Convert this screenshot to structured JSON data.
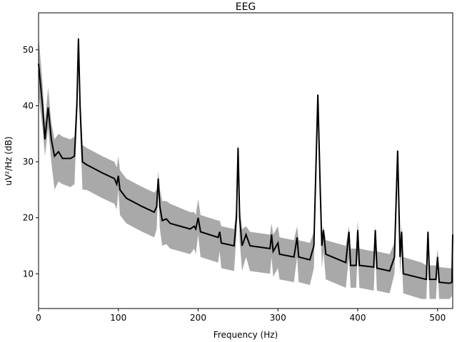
{
  "chart_data": {
    "type": "line",
    "title": "EEG",
    "x_label": "Frequency (Hz)",
    "y_label": "uV²/Hz (dB)",
    "x": [
      0,
      5,
      8,
      12,
      16,
      20,
      25,
      30,
      40,
      45,
      48,
      50,
      52,
      55,
      60,
      80,
      95,
      98,
      100,
      102,
      110,
      130,
      145,
      148,
      150,
      152,
      155,
      160,
      165,
      190,
      195,
      197,
      200,
      203,
      225,
      227,
      229,
      245,
      248,
      250,
      252,
      255,
      260,
      265,
      290,
      292,
      294,
      300,
      302,
      320,
      324,
      326,
      340,
      345,
      350,
      353,
      355,
      357,
      360,
      385,
      389,
      391,
      398,
      400,
      402,
      420,
      422,
      424,
      440,
      446,
      450,
      453,
      455,
      457,
      480,
      486,
      488,
      490,
      498,
      500,
      502,
      515,
      518,
      519
    ],
    "series": [
      {
        "color": "#000000",
        "band_color": "#a9a9a9",
        "values": [
          47.5,
          40,
          34,
          39.7,
          34,
          31,
          31.8,
          30.6,
          30.6,
          31,
          40,
          52,
          40,
          30,
          29.5,
          28,
          27,
          26,
          27.5,
          25,
          23.5,
          22,
          21,
          22,
          27,
          22,
          19.5,
          19.8,
          19,
          18,
          18.5,
          18,
          20,
          17.5,
          16.5,
          17.5,
          15.5,
          15,
          20,
          32.5,
          20,
          15,
          17,
          15,
          14.5,
          17,
          14,
          15.5,
          13.5,
          13,
          16.5,
          13,
          12.5,
          15,
          42,
          25,
          15,
          17.8,
          13.5,
          12,
          17.5,
          11.5,
          11.5,
          17.8,
          11.5,
          11.2,
          17.8,
          11,
          10.5,
          13,
          32,
          13,
          17.5,
          10,
          9.2,
          9,
          17.5,
          9,
          9,
          13,
          8.5,
          8.3,
          8.5,
          17
        ],
        "lower": [
          42,
          36,
          31,
          36,
          30,
          25,
          26.5,
          26,
          25.5,
          26,
          37,
          50,
          36,
          25,
          25,
          23.5,
          22.5,
          21.5,
          25,
          20.5,
          19,
          17.5,
          16.5,
          18,
          25,
          18,
          15,
          15.3,
          14.5,
          13.5,
          14.5,
          13.5,
          17,
          13,
          12,
          14,
          11,
          10.5,
          17,
          30.5,
          16,
          10.5,
          13,
          10.5,
          10,
          13,
          9.5,
          11,
          9,
          8.5,
          13,
          8.5,
          8,
          11,
          40,
          21,
          11,
          14,
          9,
          7.5,
          13,
          7.5,
          7.5,
          14,
          7.5,
          7,
          14,
          7,
          6.5,
          10,
          30,
          10,
          14,
          6.5,
          5.5,
          5.5,
          14,
          5.5,
          5.5,
          11,
          5.5,
          5.5,
          6,
          14
        ],
        "upper": [
          52.5,
          44,
          37,
          43.3,
          37,
          34,
          35,
          34.5,
          34,
          34.5,
          43,
          53.5,
          42,
          33,
          32.5,
          31,
          30,
          29,
          31,
          28.5,
          27,
          25.5,
          24.5,
          25,
          28.3,
          25,
          23,
          23,
          22.5,
          21,
          21,
          20.5,
          23.3,
          20.5,
          19.5,
          19.5,
          18.5,
          18,
          22,
          33.5,
          22,
          18,
          18.5,
          17.5,
          17,
          19,
          17,
          18.5,
          16.5,
          16,
          18.5,
          16,
          15.5,
          17.5,
          42.5,
          27,
          17,
          18.5,
          16,
          15,
          18.5,
          14.5,
          14.5,
          19.5,
          14.5,
          14,
          18.5,
          14,
          13.5,
          15.5,
          32.5,
          15.5,
          18.5,
          13,
          12,
          11.5,
          18,
          11.5,
          11.5,
          14.5,
          11.2,
          11,
          11,
          18
        ]
      }
    ],
    "xlim": [
      0,
      519
    ],
    "ylim": [
      3.8,
      56.6
    ],
    "xticks": [
      0,
      100,
      200,
      300,
      400,
      500
    ],
    "yticks": [
      10,
      20,
      30,
      40,
      50
    ]
  }
}
